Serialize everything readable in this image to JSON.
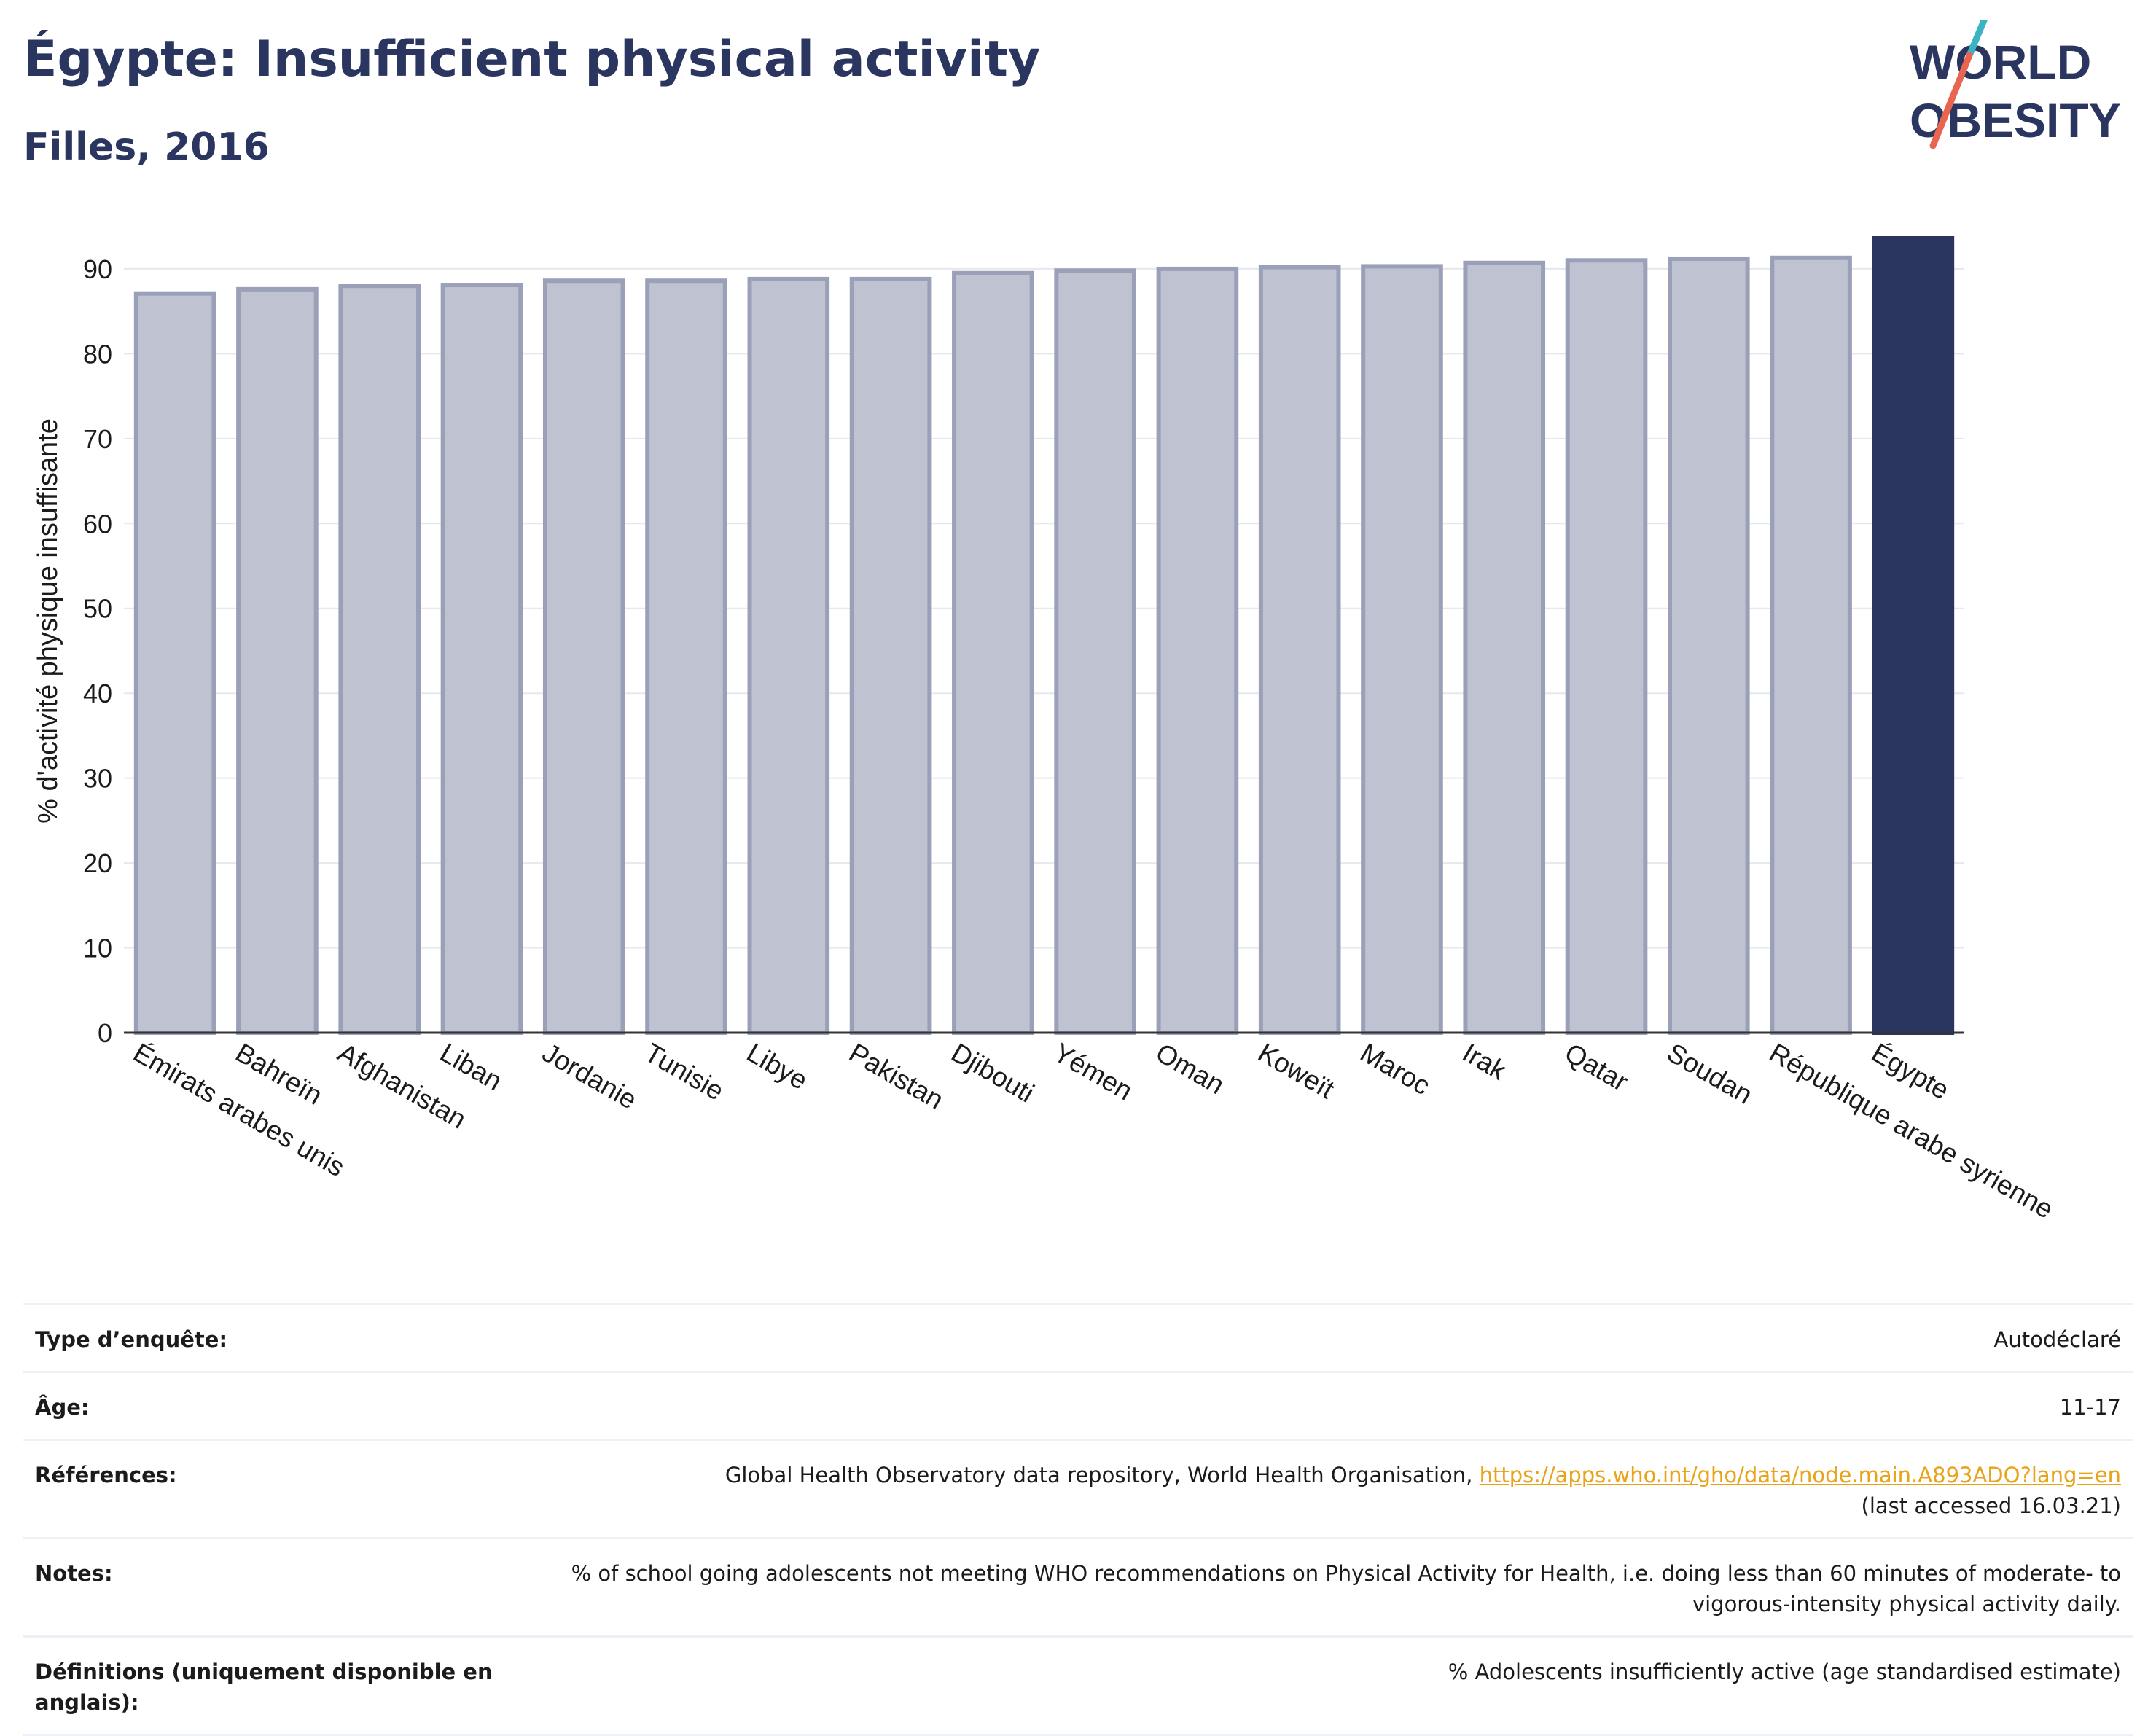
{
  "header": {
    "title": "Égypte: Insufficient physical activity",
    "subtitle": "Filles, 2016"
  },
  "logo": {
    "line1": "WORLD",
    "line2": "OBESITY",
    "accent_colors": [
      "#3bb3c3",
      "#e8654f"
    ]
  },
  "colors": {
    "highlight_bar": "#2a3560",
    "bar_fill": "#bfc2d0",
    "bar_border": "#9aa0b8",
    "link": "#e8a317"
  },
  "chart_data": {
    "type": "bar",
    "title": "",
    "xlabel": "",
    "ylabel": "% d'activité physique insuffisante",
    "ylim": [
      0,
      93.6
    ],
    "yticks": [
      0,
      10,
      20,
      30,
      40,
      50,
      60,
      70,
      80,
      90
    ],
    "grid": true,
    "categories": [
      "Émirats arabes unis",
      "Bahreïn",
      "Afghanistan",
      "Liban",
      "Jordanie",
      "Tunisie",
      "Libye",
      "Pakistan",
      "Djibouti",
      "Yémen",
      "Oman",
      "Koweït",
      "Maroc",
      "Irak",
      "Qatar",
      "Soudan",
      "République arabe syrienne",
      "Égypte"
    ],
    "values": [
      87.1,
      87.6,
      88.0,
      88.1,
      88.6,
      88.6,
      88.8,
      88.8,
      89.5,
      89.8,
      90.0,
      90.2,
      90.3,
      90.7,
      91.0,
      91.2,
      91.3,
      93.6
    ],
    "highlight": "Égypte"
  },
  "meta": [
    {
      "label": "Type d’enquête:",
      "value": "Autodéclaré"
    },
    {
      "label": "Âge:",
      "value": "11-17"
    },
    {
      "label": "Références:",
      "value": "Global Health Observatory data repository, World Health Organisation, ",
      "link": "https://apps.who.int/gho/data/node.main.A893ADO?lang=en",
      "value2": "(last accessed 16.03.21)"
    },
    {
      "label": "Notes:",
      "value": "% of school going adolescents not meeting WHO recommendations on Physical Activity for Health, i.e. doing less than 60 minutes of moderate- to vigorous-intensity physical activity daily."
    },
    {
      "label": "Définitions (uniquement disponible en anglais):",
      "value": "% Adolescents insufficiently active (age standardised estimate)"
    }
  ]
}
